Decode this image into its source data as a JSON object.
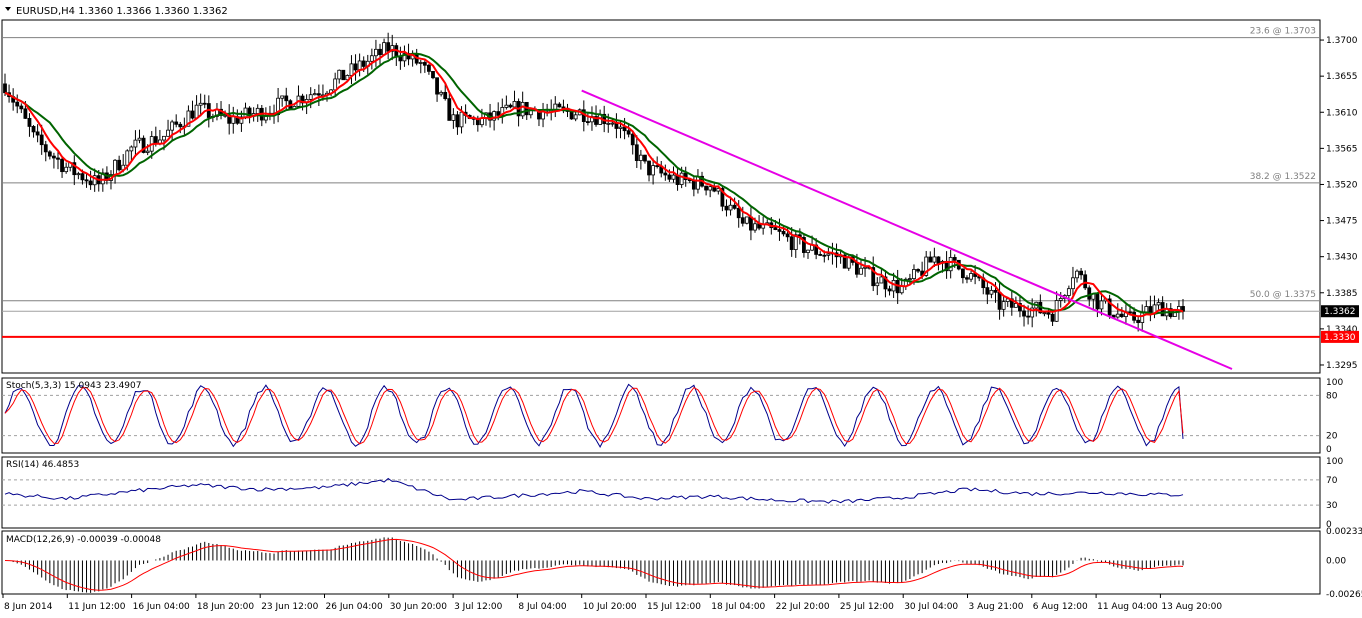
{
  "colors": {
    "background": "#ffffff",
    "frame": "#000000",
    "candle": "#000000",
    "fast_ma": "#ff0000",
    "slow_ma_up": "#006400",
    "slow_ma_flat": "#ffff00",
    "trendline": "#e600e6",
    "support": "#ff0000",
    "fib": "#808080",
    "stoch_main": "#00008b",
    "stoch_signal": "#ff0000",
    "rsi": "#00008b",
    "macd_hist": "#000000",
    "macd_signal": "#ff0000",
    "price_tag_bg": "#000000",
    "support_tag_bg": "#ff0000"
  },
  "chart_data": {
    "type": "candlestick",
    "symbol_label": "EURUSD,H4  1.3360 1.3366 1.3360 1.3362",
    "x_tick_labels": [
      "8 Jun 2014",
      "11 Jun 12:00",
      "16 Jun 04:00",
      "18 Jun 20:00",
      "23 Jun 12:00",
      "26 Jun 04:00",
      "30 Jun 20:00",
      "3 Jul 12:00",
      "8 Jul 04:00",
      "10 Jul 20:00",
      "15 Jul 12:00",
      "18 Jul 04:00",
      "22 Jul 20:00",
      "25 Jul 12:00",
      "30 Jul 04:00",
      "3 Aug 21:00",
      "6 Aug 12:00",
      "11 Aug 04:00",
      "13 Aug 20:00"
    ],
    "price_axis": {
      "ylim": [
        1.3285,
        1.3725
      ],
      "ticks": [
        "1.3700",
        "1.3655",
        "1.3610",
        "1.3565",
        "1.3520",
        "1.3475",
        "1.3430",
        "1.3385",
        "1.3340",
        "1.3295"
      ]
    },
    "current_price": {
      "value": 1.3362,
      "label": "1.3362"
    },
    "support_line": {
      "value": 1.333,
      "label": "1.3330"
    },
    "fib_levels": [
      {
        "label": "23.6 @ 1.3703",
        "value": 1.3703
      },
      {
        "label": "38.2 @ 1.3522",
        "value": 1.3522
      },
      {
        "label": "50.0 @ 1.3375",
        "value": 1.3375
      }
    ],
    "trendline": {
      "start_date": "10 Jul 20:00",
      "start_value": 1.3637,
      "end_date": "after 13 Aug 20:00",
      "end_value": 1.329
    },
    "price_anchors": [
      [
        "8 Jun 2014",
        1.365
      ],
      [
        "10 Jun",
        1.3575
      ],
      [
        "11 Jun 12:00",
        1.354
      ],
      [
        "13 Jun",
        1.352
      ],
      [
        "16 Jun 04:00",
        1.3565
      ],
      [
        "17 Jun",
        1.358
      ],
      [
        "18 Jun 20:00",
        1.3615
      ],
      [
        "20 Jun",
        1.36
      ],
      [
        "23 Jun 12:00",
        1.361
      ],
      [
        "25 Jun",
        1.3625
      ],
      [
        "26 Jun 04:00",
        1.364
      ],
      [
        "27 Jun",
        1.3665
      ],
      [
        "30 Jun 20:00",
        1.369
      ],
      [
        "2 Jul",
        1.367
      ],
      [
        "3 Jul 12:00",
        1.36
      ],
      [
        "7 Jul",
        1.36
      ],
      [
        "8 Jul 04:00",
        1.3615
      ],
      [
        "9 Jul",
        1.361
      ],
      [
        "10 Jul 20:00",
        1.361
      ],
      [
        "14 Jul",
        1.36
      ],
      [
        "15 Jul 12:00",
        1.354
      ],
      [
        "17 Jul",
        1.3525
      ],
      [
        "18 Jul 04:00",
        1.352
      ],
      [
        "21 Jul",
        1.347
      ],
      [
        "22 Jul 20:00",
        1.346
      ],
      [
        "24 Jul",
        1.344
      ],
      [
        "25 Jul 12:00",
        1.343
      ],
      [
        "28 Jul",
        1.3405
      ],
      [
        "30 Jul 04:00",
        1.339
      ],
      [
        "31 Jul",
        1.343
      ],
      [
        "3 Aug 21:00",
        1.341
      ],
      [
        "5 Aug",
        1.337
      ],
      [
        "6 Aug 12:00",
        1.3365
      ],
      [
        "7 Aug",
        1.336
      ],
      [
        "8 Aug",
        1.3415
      ],
      [
        "11 Aug 04:00",
        1.3375
      ],
      [
        "12 Aug",
        1.335
      ],
      [
        "13 Aug 20:00",
        1.3368
      ],
      [
        "14 Aug",
        1.3362
      ]
    ],
    "stochastic": {
      "label": "Stoch(5,3,3) 15.0943 23.4907",
      "main_last": 15.0943,
      "signal_last": 23.4907,
      "levels": [
        20,
        80
      ],
      "axis_ticks": [
        "100",
        "80",
        "20",
        "0"
      ]
    },
    "rsi": {
      "label": "RSI(14) 46.4853",
      "last": 46.4853,
      "levels": [
        30,
        70
      ],
      "axis_ticks": [
        "100",
        "70",
        "30",
        "0"
      ],
      "anchors": [
        [
          "8 Jun 2014",
          48
        ],
        [
          "11 Jun 12:00",
          40
        ],
        [
          "16 Jun 04:00",
          52
        ],
        [
          "18 Jun 20:00",
          62
        ],
        [
          "23 Jun 12:00",
          55
        ],
        [
          "26 Jun 04:00",
          58
        ],
        [
          "30 Jun 20:00",
          70
        ],
        [
          "3 Jul 12:00",
          38
        ],
        [
          "8 Jul 04:00",
          45
        ],
        [
          "10 Jul 20:00",
          52
        ],
        [
          "15 Jul 12:00",
          40
        ],
        [
          "18 Jul 04:00",
          44
        ],
        [
          "22 Jul 20:00",
          38
        ],
        [
          "25 Jul 12:00",
          35
        ],
        [
          "30 Jul 04:00",
          42
        ],
        [
          "3 Aug 21:00",
          55
        ],
        [
          "6 Aug 12:00",
          48
        ],
        [
          "11 Aug 04:00",
          50
        ],
        [
          "13 Aug 20:00",
          46.4853
        ]
      ]
    },
    "macd": {
      "label": "MACD(12,26,9) -0.00039 -0.00048",
      "macd_last": -0.00039,
      "signal_last": -0.00048,
      "axis_ticks": [
        "0.00233",
        "0.00",
        "-0.00265"
      ],
      "ylim": [
        -0.00265,
        0.00233
      ]
    }
  }
}
